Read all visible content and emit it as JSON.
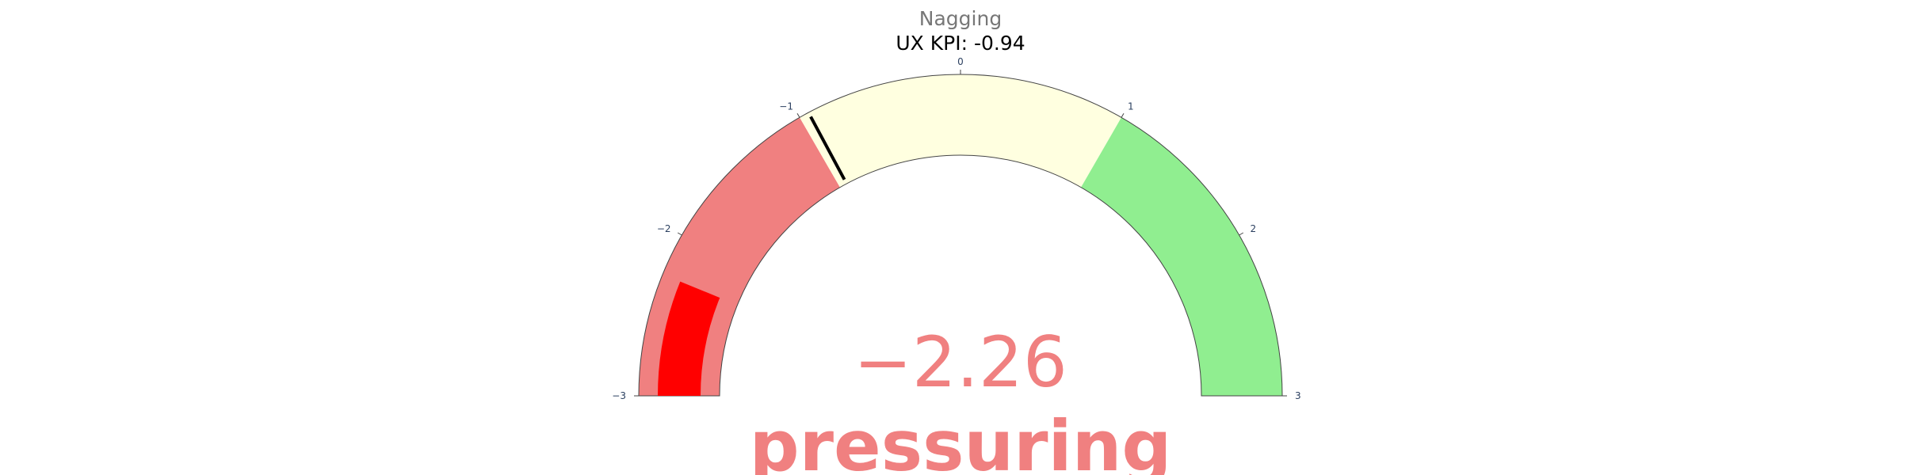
{
  "title": {
    "category": "Nagging",
    "kpi": "UX KPI: -0.94"
  },
  "verdict": "pressuring",
  "chart_data": {
    "type": "gauge",
    "value": -2.26,
    "value_label": "−2.26",
    "threshold": -0.94,
    "range": [
      -3,
      3
    ],
    "ticks": [
      {
        "value": -3,
        "label": "−3"
      },
      {
        "value": -2,
        "label": "−2"
      },
      {
        "value": -1,
        "label": "−1"
      },
      {
        "value": 0,
        "label": "0"
      },
      {
        "value": 1,
        "label": "1"
      },
      {
        "value": 2,
        "label": "2"
      },
      {
        "value": 3,
        "label": "3"
      }
    ],
    "steps": [
      {
        "range": [
          -3,
          -1
        ],
        "color": "#f08080"
      },
      {
        "range": [
          -1,
          1
        ],
        "color": "#ffffe0"
      },
      {
        "range": [
          1,
          3
        ],
        "color": "#90ee90"
      }
    ],
    "bar_color": "#ff0000",
    "threshold_color": "#000000",
    "text_color": "#f08080"
  }
}
